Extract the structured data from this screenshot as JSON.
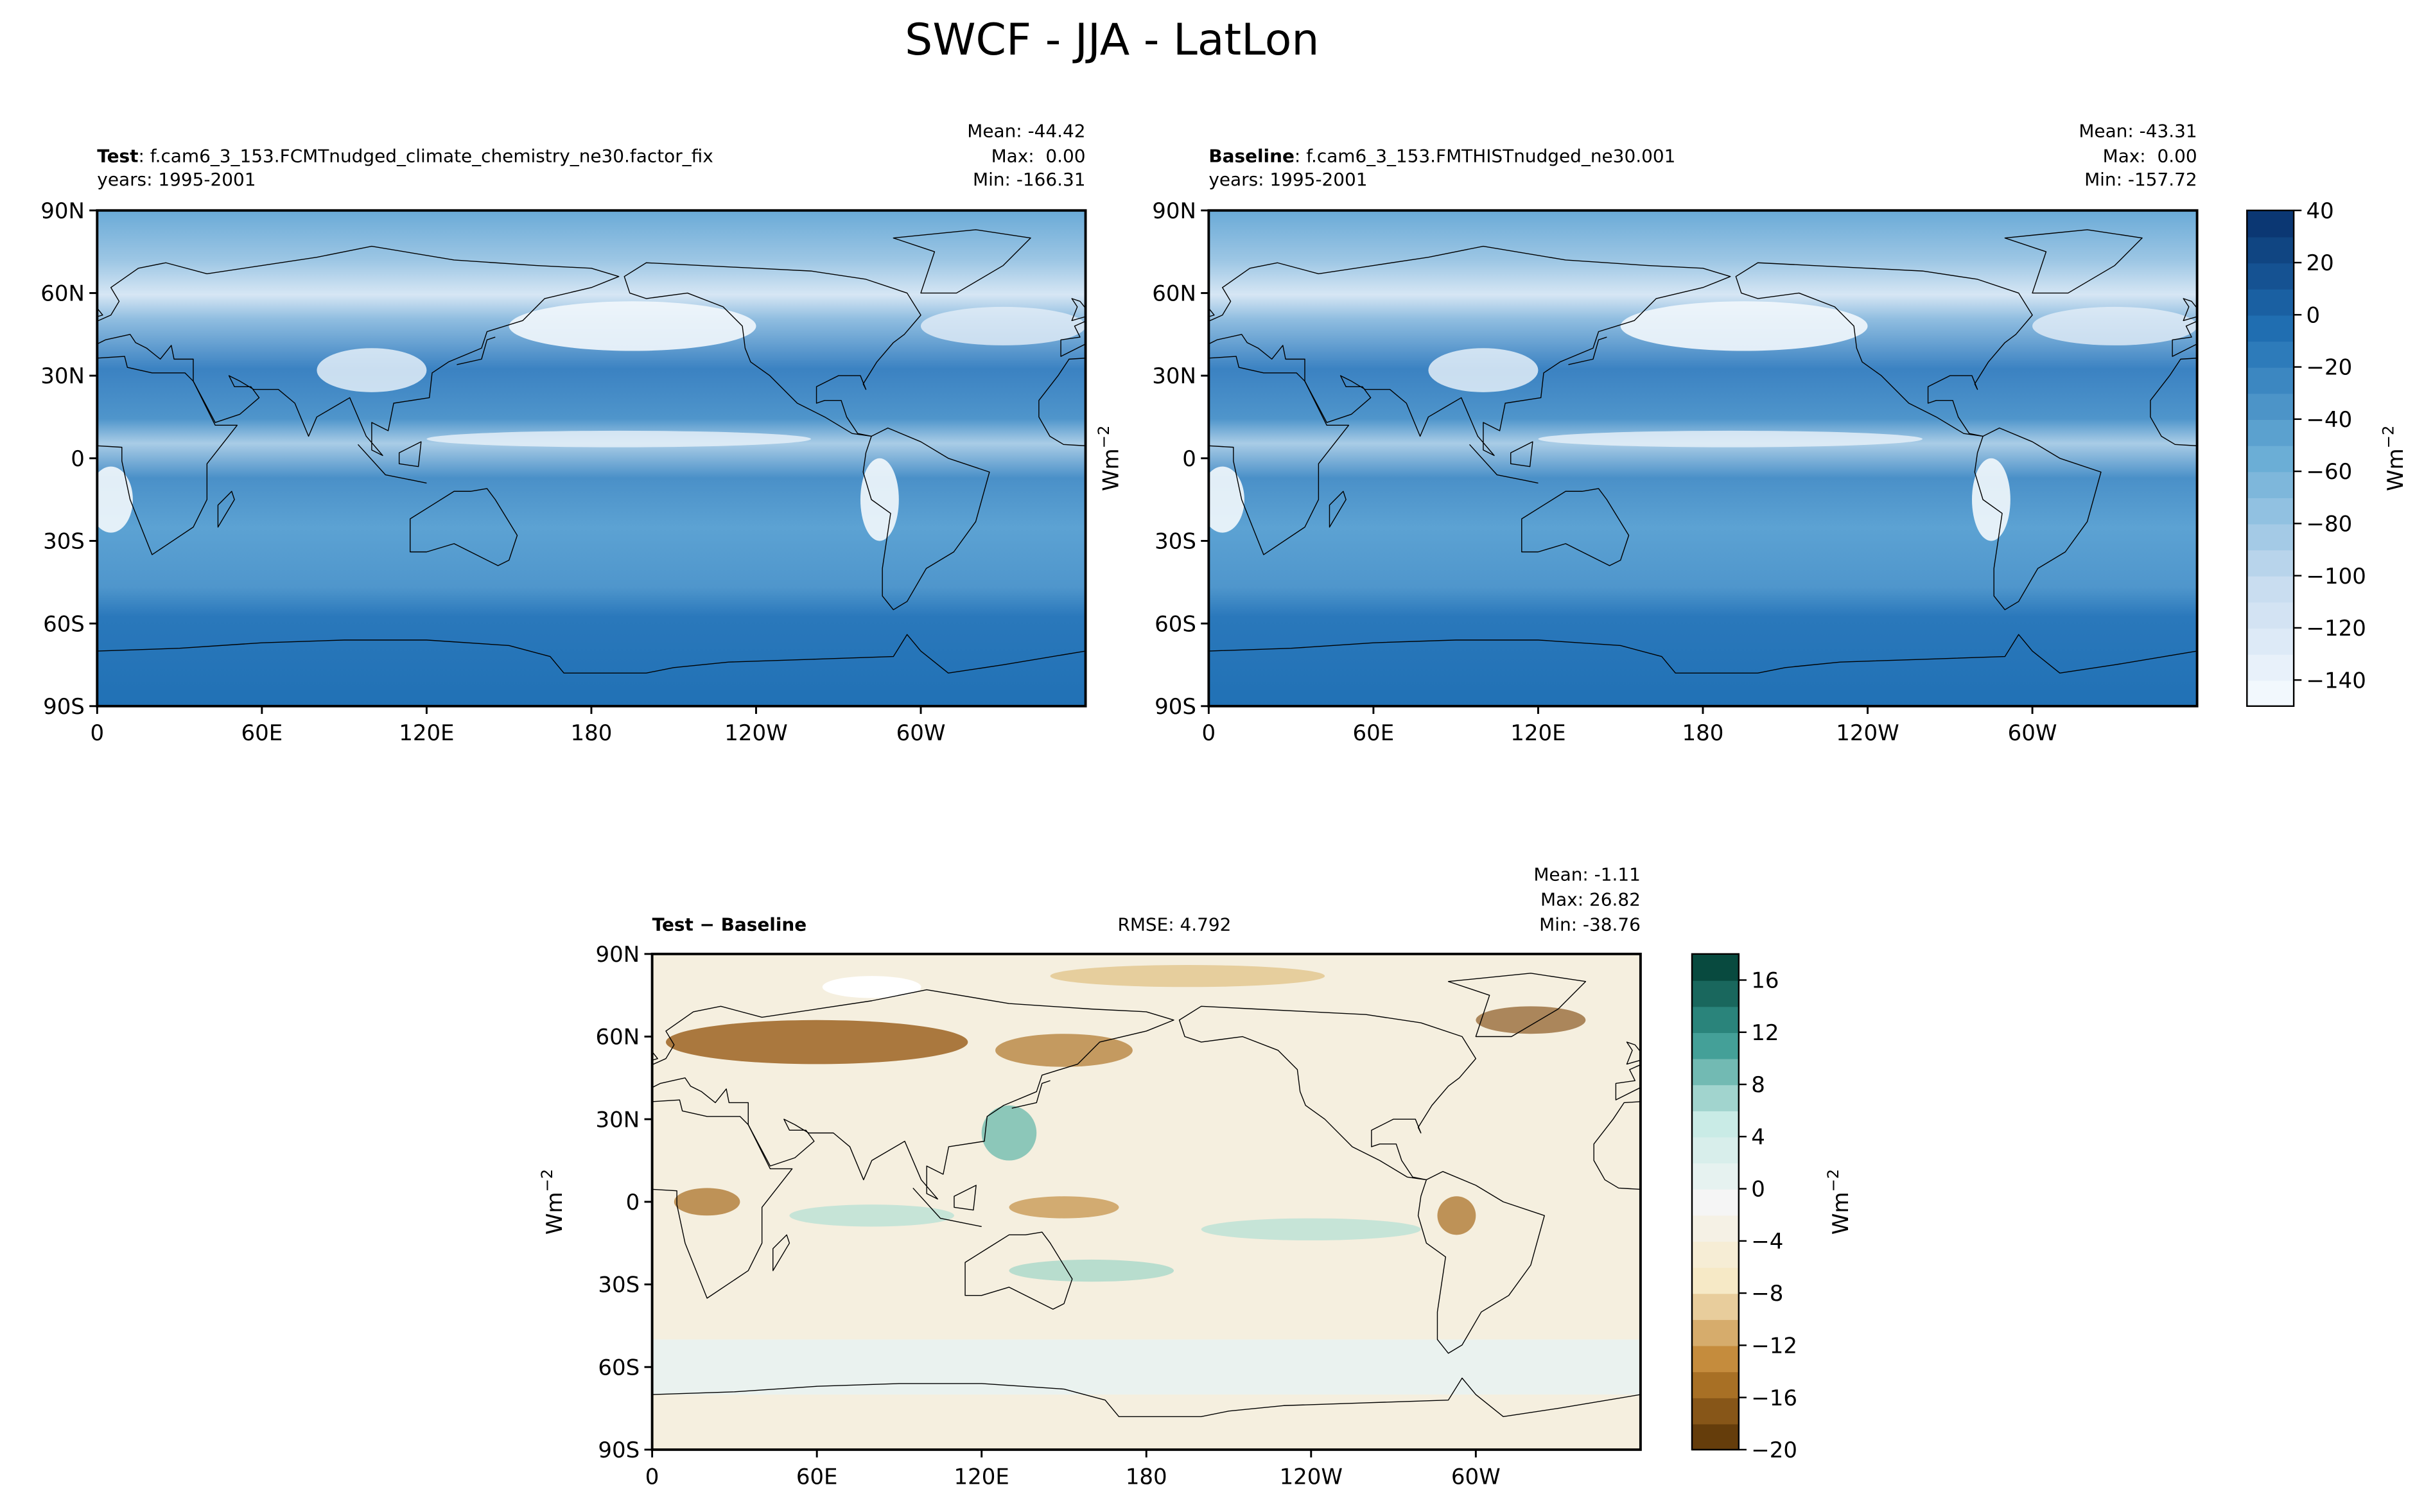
{
  "title": "SWCF - JJA - LatLon",
  "lon_range": [
    0,
    360
  ],
  "lat_range": [
    -90,
    90
  ],
  "lat_ticks": [
    {
      "value": 90,
      "label": "90N"
    },
    {
      "value": 60,
      "label": "60N"
    },
    {
      "value": 30,
      "label": "30N"
    },
    0,
    {
      "value": -30,
      "label": "30S"
    },
    {
      "value": -60,
      "label": "60S"
    },
    {
      "value": -90,
      "label": "90S"
    }
  ],
  "lon_ticks": [
    0,
    {
      "value": 60,
      "label": "60E"
    },
    {
      "value": 120,
      "label": "120E"
    },
    180,
    {
      "value": 240,
      "label": "120W"
    },
    {
      "value": 300,
      "label": "60W"
    }
  ],
  "panels": [
    {
      "name": "Test",
      "description": ": f.cam6_3_153.FCMTnudged_climate_chemistry_ne30.factor_fix",
      "years": "years: 1995-2001",
      "stats": [
        "Mean: -44.42",
        "Max:  0.00",
        "Min: -166.31"
      ]
    },
    {
      "name": "Baseline",
      "description": ": f.cam6_3_153.FMTHISTnudged_ne30.001",
      "years": "years: 1995-2001",
      "stats": [
        "Mean: -43.31",
        "Max:  0.00",
        "Min: -157.72"
      ],
      "ylabel": {
        "text": "Wm",
        "exp": "−2"
      }
    },
    {
      "name": "Test − Baseline",
      "rmse": "RMSE: 4.792",
      "stats": [
        "Mean: -1.11",
        "Max: 26.82",
        "Min: -38.76"
      ],
      "ylabel": {
        "text": "Wm",
        "exp": "−2"
      }
    }
  ],
  "colorbars": [
    {
      "lim": [
        -150,
        40
      ],
      "step": 10,
      "colors": [
        "#f7fbff",
        "#c6dbef",
        "#6baed6",
        "#2171b5",
        "#08306b"
      ],
      "ticks": [
        40,
        20,
        0,
        {
          "value": -20,
          "label": "−20"
        },
        {
          "value": -40,
          "label": "−40"
        },
        {
          "value": -60,
          "label": "−60"
        },
        {
          "value": -80,
          "label": "−80"
        },
        {
          "value": -100,
          "label": "−100"
        },
        {
          "value": -120,
          "label": "−120"
        },
        {
          "value": -140,
          "label": "−140"
        }
      ],
      "label": {
        "text": "Wm",
        "exp": "−2"
      }
    },
    {
      "lim": [
        -20,
        18
      ],
      "step": 2,
      "colors": [
        "#543005",
        "#bf812d",
        "#f6e8c3",
        "#f5f5f5",
        "#c7eae5",
        "#35978f",
        "#003c30"
      ],
      "ticks": [
        16,
        12,
        8,
        4,
        0,
        {
          "value": -4,
          "label": "−4"
        },
        {
          "value": -8,
          "label": "−8"
        },
        {
          "value": -12,
          "label": "−12"
        },
        {
          "value": -16,
          "label": "−16"
        },
        {
          "value": -20,
          "label": "−20"
        }
      ],
      "label": {
        "text": "Wm",
        "exp": "−2"
      }
    }
  ]
}
